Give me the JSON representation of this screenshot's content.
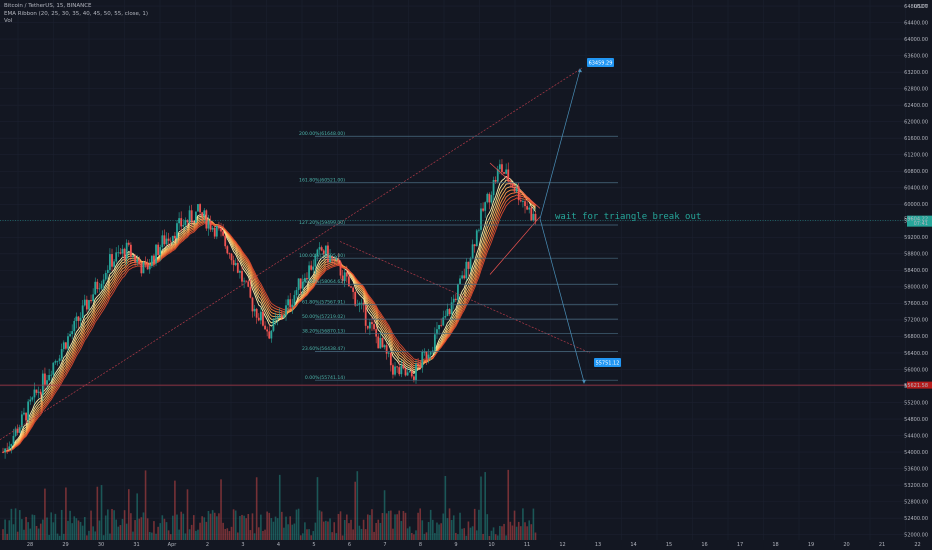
{
  "legend": {
    "symbol": "Bitcoin / TetherUS, 15, BINANCE",
    "indicator": "EMA Ribbon (20, 25, 30, 35, 40, 45, 50, 55, close, 1)",
    "volume": "Vol"
  },
  "currency": "USDT",
  "colors": {
    "background": "#131722",
    "up": "#26a69a",
    "down": "#ef5350",
    "fib_line": "#4a6d82",
    "fib_text": "#4db6ac",
    "arrow": "#4a8fb8",
    "trendline": "#b03a48",
    "callout": "#2196f3",
    "price_label": "#26a69a",
    "support_label": "#b71c1c"
  },
  "chart_data": {
    "type": "candlestick",
    "x_ticks": [
      "28",
      "29",
      "30",
      "31",
      "Apr",
      "2",
      "3",
      "4",
      "5",
      "6",
      "7",
      "8",
      "9",
      "10",
      "11",
      "12",
      "13",
      "14",
      "15",
      "16",
      "17",
      "18",
      "19",
      "20",
      "21",
      "22"
    ],
    "y_ticks": [
      54000,
      54400,
      54800,
      55200,
      55600,
      56000,
      56400,
      56800,
      57200,
      57600,
      58000,
      58400,
      58800,
      59200,
      59600,
      60000,
      60400,
      60800,
      61200,
      61600,
      62000,
      62400,
      62800,
      63200,
      63600,
      64000,
      64400,
      64800
    ],
    "y_tick_labels": [
      "54000.00",
      "54400.00",
      "54800.00",
      "55200.00",
      "55600.00",
      "56000.00",
      "56400.00",
      "56800.00",
      "57200.00",
      "57600.00",
      "58000.00",
      "58400.00",
      "58800.00",
      "59200.00",
      "59600.00",
      "60000.00",
      "60400.00",
      "60800.00",
      "61200.00",
      "61600.00",
      "62000.00",
      "62400.00",
      "62800.00",
      "63200.00",
      "63600.00",
      "64000.00",
      "64400.00",
      "64800.00"
    ],
    "low_ticks": [
      52000,
      52400,
      52800,
      53200,
      53600
    ],
    "low_tick_labels": [
      "52000.00",
      "52400.00",
      "52800.00",
      "53200.00",
      "53600.00"
    ],
    "ylim": [
      51750,
      64850
    ],
    "price_path": [
      [
        0,
        54000
      ],
      [
        0.5,
        54700
      ],
      [
        1,
        55500
      ],
      [
        1.5,
        56300
      ],
      [
        2,
        57000
      ],
      [
        2.5,
        57800
      ],
      [
        3,
        58600
      ],
      [
        3.5,
        58900
      ],
      [
        4,
        58400
      ],
      [
        4.5,
        59100
      ],
      [
        5,
        59500
      ],
      [
        5.5,
        59800
      ],
      [
        6,
        59400
      ],
      [
        6.5,
        58700
      ],
      [
        7,
        57600
      ],
      [
        7.5,
        56900
      ],
      [
        8,
        57500
      ],
      [
        8.5,
        58300
      ],
      [
        9,
        58900
      ],
      [
        9.5,
        58400
      ],
      [
        10,
        57600
      ],
      [
        10.5,
        56800
      ],
      [
        11,
        56000
      ],
      [
        11.5,
        55800
      ],
      [
        12,
        56500
      ],
      [
        12.5,
        57300
      ],
      [
        13,
        58300
      ],
      [
        13.5,
        59800
      ],
      [
        14,
        60900
      ],
      [
        14.5,
        60300
      ],
      [
        15,
        59600
      ]
    ],
    "fib_levels": [
      {
        "ratio": "0.00%",
        "value": 55741.14,
        "label": "0.00%(55741.14)"
      },
      {
        "ratio": "23.60%",
        "value": 56438.47,
        "label": "23.60%(56438.47)"
      },
      {
        "ratio": "38.20%",
        "value": 56870.13,
        "label": "38.20%(56870.13)"
      },
      {
        "ratio": "50.00%",
        "value": 57219.02,
        "label": "50.00%(57219.02)"
      },
      {
        "ratio": "61.80%",
        "value": 57567.91,
        "label": "61.80%(57567.91)"
      },
      {
        "ratio": "78.60%",
        "value": 58064.62,
        "label": "78.60%(58064.62)"
      },
      {
        "ratio": "100.00%",
        "value": 58695.0,
        "label": "100.00%(58695.00)"
      },
      {
        "ratio": "127.20%",
        "value": 59499.0,
        "label": "127.20%(59499.00)"
      },
      {
        "ratio": "161.80%",
        "value": 60521.0,
        "label": "161.80%(60521.00)"
      },
      {
        "ratio": "200.00%",
        "value": 61648.0,
        "label": "200.00%(61648.00)"
      }
    ],
    "current_price": {
      "value": 59604.22,
      "label": "59604.22",
      "sub": "07:41"
    },
    "support_price": {
      "value": 55621.58,
      "label": "55621.58"
    },
    "targets": [
      {
        "value": 63459.29,
        "label": "63459.29"
      },
      {
        "value": 55751.12,
        "label": "55751.12"
      }
    ],
    "annotation": "wait for triangle break out"
  }
}
